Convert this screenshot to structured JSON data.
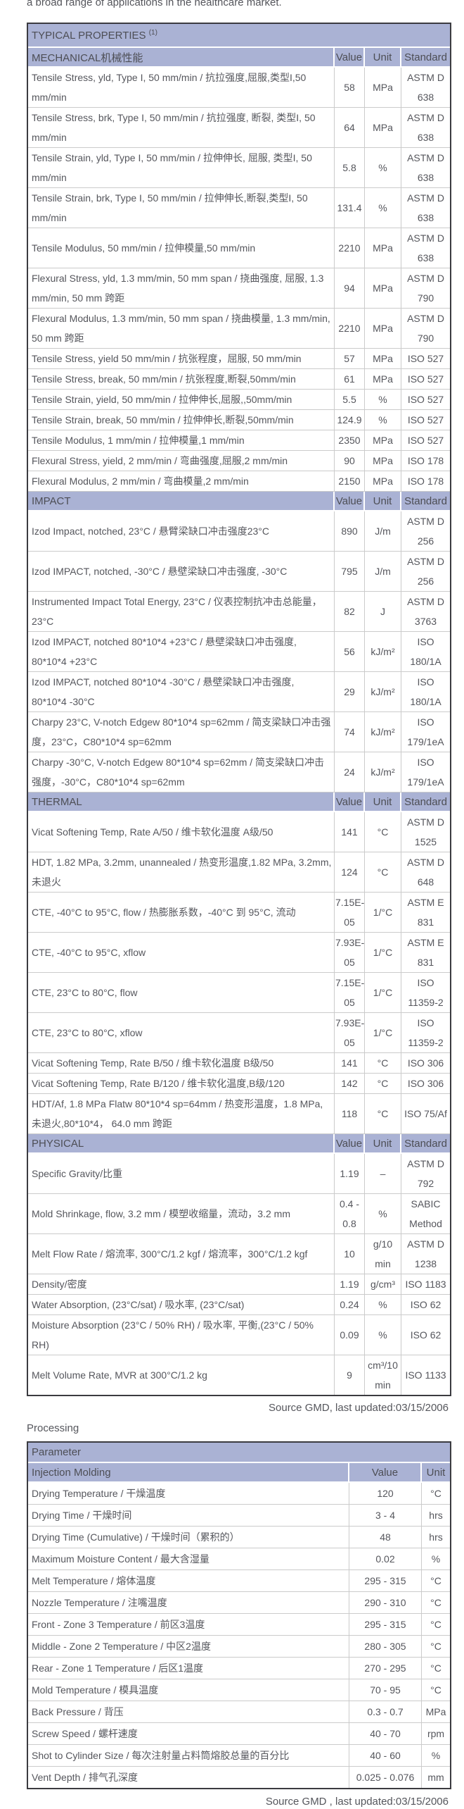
{
  "page": {
    "intro_text": "a broad range of applications in the healthcare market.",
    "source_note_1": "Source GMD, last updated:03/15/2006",
    "processing_heading": "Processing",
    "source_note_2": "Source GMD , last updated:03/15/2006"
  },
  "colors": {
    "header_band": "#aab2d4",
    "outer_border": "#3b3b40",
    "cell_border": "#cbcbcb",
    "text": "#55565c",
    "background": "#ffffff"
  },
  "properties_table": {
    "title": "TYPICAL PROPERTIES ",
    "title_superscript": "(1)",
    "columns": [
      "Value",
      "Unit",
      "Standard"
    ],
    "sections": [
      {
        "name": "MECHANICAL机械性能",
        "rows": [
          {
            "property": "Tensile Stress, yld, Type I, 50 mm/min / 抗拉强度,屈服,类型I,50 mm/min",
            "value": "58",
            "unit": "MPa",
            "standard": "ASTM D 638"
          },
          {
            "property": "Tensile Stress, brk, Type I, 50 mm/min / 抗拉强度, 断裂, 类型I, 50 mm/min",
            "value": "64",
            "unit": "MPa",
            "standard": "ASTM D 638"
          },
          {
            "property": "Tensile Strain, yld, Type I, 50 mm/min / 拉伸伸长, 屈服, 类型I, 50 mm/min",
            "value": "5.8",
            "unit": "%",
            "standard": "ASTM D 638"
          },
          {
            "property": "Tensile Strain, brk, Type I, 50 mm/min / 拉伸伸长,断裂,类型I, 50 mm/min",
            "value": "131.4",
            "unit": "%",
            "standard": "ASTM D 638"
          },
          {
            "property": "Tensile Modulus, 50 mm/min / 拉伸模量,50 mm/min",
            "value": "2210",
            "unit": "MPa",
            "standard": "ASTM D 638"
          },
          {
            "property": "Flexural Stress, yld, 1.3 mm/min, 50 mm span / 挠曲强度, 屈服, 1.3 mm/min, 50 mm 跨距",
            "value": "94",
            "unit": "MPa",
            "standard": "ASTM D 790"
          },
          {
            "property": "Flexural Modulus, 1.3 mm/min, 50 mm span / 挠曲模量, 1.3 mm/min, 50 mm 跨距",
            "value": "2210",
            "unit": "MPa",
            "standard": "ASTM D 790"
          },
          {
            "property": "Tensile Stress, yield 50 mm/min / 抗张程度，屈服, 50 mm/min",
            "value": "57",
            "unit": "MPa",
            "standard": "ISO 527"
          },
          {
            "property": "Tensile Stress, break, 50 mm/min / 抗张程度,断裂,50mm/min",
            "value": "61",
            "unit": "MPa",
            "standard": "ISO 527"
          },
          {
            "property": "Tensile Strain, yield, 50 mm/min / 拉伸伸长,屈服,,50mm/min",
            "value": "5.5",
            "unit": "%",
            "standard": "ISO 527"
          },
          {
            "property": "Tensile Strain, break, 50 mm/min / 拉伸伸长,断裂,50mm/min",
            "value": "124.9",
            "unit": "%",
            "standard": "ISO 527"
          },
          {
            "property": "Tensile Modulus, 1 mm/min / 拉伸模量,1 mm/min",
            "value": "2350",
            "unit": "MPa",
            "standard": "ISO 527"
          },
          {
            "property": "Flexural Stress, yield, 2 mm/min / 弯曲强度,屈服,2 mm/min",
            "value": "90",
            "unit": "MPa",
            "standard": "ISO 178"
          },
          {
            "property": "Flexural Modulus, 2 mm/min / 弯曲模量,2 mm/min",
            "value": "2150",
            "unit": "MPa",
            "standard": "ISO 178"
          }
        ]
      },
      {
        "name": "IMPACT",
        "rows": [
          {
            "property": "Izod Impact, notched, 23°C / 悬臂梁缺口冲击强度23°C",
            "value": "890",
            "unit": "J/m",
            "standard": "ASTM D 256"
          },
          {
            "property": "Izod IMPACT, notched, -30°C / 悬壁梁缺口冲击强度, -30°C",
            "value": "795",
            "unit": "J/m",
            "standard": "ASTM D 256"
          },
          {
            "property": "Instrumented Impact Total Energy, 23°C / 仪表控制抗冲击总能量，23°C",
            "value": "82",
            "unit": "J",
            "standard": "ASTM D 3763"
          },
          {
            "property": "Izod IMPACT, notched 80*10*4 +23°C / 悬壁梁缺口冲击强度, 80*10*4 +23°C",
            "value": "56",
            "unit": "kJ/m²",
            "standard": "ISO 180/1A"
          },
          {
            "property": "Izod IMPACT, notched 80*10*4 -30°C / 悬壁梁缺口冲击强度, 80*10*4 -30°C",
            "value": "29",
            "unit": "kJ/m²",
            "standard": "ISO 180/1A"
          },
          {
            "property": "Charpy 23°C, V-notch Edgew 80*10*4 sp=62mm / 简支梁缺口冲击强度，23°C，C80*10*4 sp=62mm",
            "value": "74",
            "unit": "kJ/m²",
            "standard": "ISO 179/1eA"
          },
          {
            "property": "Charpy -30°C, V-notch Edgew 80*10*4 sp=62mm / 简支梁缺口冲击强度，-30°C，C80*10*4 sp=62mm",
            "value": "24",
            "unit": "kJ/m²",
            "standard": "ISO 179/1eA"
          }
        ]
      },
      {
        "name": "THERMAL",
        "rows": [
          {
            "property": "Vicat Softening Temp, Rate A/50 / 维卡软化温度 A级/50",
            "value": "141",
            "unit": "°C",
            "standard": "ASTM D 1525"
          },
          {
            "property": "HDT, 1.82 MPa, 3.2mm, unannealed / 热变形温度,1.82 MPa, 3.2mm,未退火",
            "value": "124",
            "unit": "°C",
            "standard": "ASTM D 648"
          },
          {
            "property": "CTE, -40°C to 95°C, flow / 热膨胀系数，-40°C 到 95°C, 流动",
            "value": "7.15E-05",
            "unit": "1/°C",
            "standard": "ASTM E 831"
          },
          {
            "property": "CTE, -40°C to 95°C, xflow",
            "value": "7.93E-05",
            "unit": "1/°C",
            "standard": "ASTM E 831"
          },
          {
            "property": "CTE, 23°C to 80°C, flow",
            "value": "7.15E-05",
            "unit": "1/°C",
            "standard": "ISO 11359-2"
          },
          {
            "property": "CTE, 23°C to 80°C, xflow",
            "value": "7.93E-05",
            "unit": "1/°C",
            "standard": "ISO 11359-2"
          },
          {
            "property": "Vicat Softening Temp, Rate B/50 / 维卡软化温度 B级/50",
            "value": "141",
            "unit": "°C",
            "standard": "ISO 306"
          },
          {
            "property": "Vicat Softening Temp, Rate B/120 / 维卡软化温度,B级/120",
            "value": "142",
            "unit": "°C",
            "standard": "ISO 306"
          },
          {
            "property": "HDT/Af, 1.8 MPa Flatw 80*10*4 sp=64mm / 热变形温度，1.8 MPa, 未退火,80*10*4，  64.0 mm 跨距",
            "value": "118",
            "unit": "°C",
            "standard": "ISO 75/Af"
          }
        ]
      },
      {
        "name": "PHYSICAL",
        "rows": [
          {
            "property": "Specific Gravity/比重",
            "value": "1.19",
            "unit": "–",
            "standard": "ASTM D 792"
          },
          {
            "property": "Mold Shrinkage, flow, 3.2 mm / 模塑收缩量，流动，3.2 mm",
            "value": "0.4 - 0.8",
            "unit": "%",
            "standard": "SABIC Method"
          },
          {
            "property": "Melt Flow Rate / 熔流率, 300°C/1.2 kgf / 熔流率，300°C/1.2 kgf",
            "value": "10",
            "unit": "g/10 min",
            "standard": "ASTM D 1238"
          },
          {
            "property": "Density/密度",
            "value": "1.19",
            "unit": "g/cm³",
            "standard": "ISO 1183"
          },
          {
            "property": "Water Absorption, (23°C/sat) / 吸水率, (23°C/sat)",
            "value": "0.24",
            "unit": "%",
            "standard": "ISO 62"
          },
          {
            "property": "Moisture Absorption (23°C / 50% RH) / 吸水率, 平衡,(23°C / 50% RH)",
            "value": "0.09",
            "unit": "%",
            "standard": "ISO 62"
          },
          {
            "property": "Melt Volume Rate, MVR at 300°C/1.2 kg",
            "value": "9",
            "unit": "cm³/10 min",
            "standard": "ISO 1133"
          }
        ]
      }
    ]
  },
  "processing_table": {
    "header": "Parameter",
    "subheader": "Injection Molding",
    "columns": [
      "Value",
      "Unit"
    ],
    "rows": [
      {
        "parameter": "Drying Temperature / 干燥温度",
        "value": "120",
        "unit": "°C"
      },
      {
        "parameter": "Drying Time / 干燥时间",
        "value": "3 - 4",
        "unit": "hrs"
      },
      {
        "parameter": "Drying Time (Cumulative) / 干燥时间（累积的）",
        "value": "48",
        "unit": "hrs"
      },
      {
        "parameter": "Maximum Moisture Content / 最大含湿量",
        "value": "0.02",
        "unit": "%"
      },
      {
        "parameter": "Melt Temperature / 熔体温度",
        "value": "295 - 315",
        "unit": "°C"
      },
      {
        "parameter": "Nozzle Temperature / 注嘴温度",
        "value": "290 - 310",
        "unit": "°C"
      },
      {
        "parameter": "Front - Zone 3 Temperature / 前区3温度",
        "value": "295 - 315",
        "unit": "°C"
      },
      {
        "parameter": "Middle - Zone 2 Temperature / 中区2温度",
        "value": "280 - 305",
        "unit": "°C"
      },
      {
        "parameter": "Rear - Zone 1 Temperature / 后区1温度",
        "value": "270 - 295",
        "unit": "°C"
      },
      {
        "parameter": "Mold Temperature / 模具温度",
        "value": "70 - 95",
        "unit": "°C"
      },
      {
        "parameter": "Back Pressure / 背压",
        "value": "0.3 - 0.7",
        "unit": "MPa"
      },
      {
        "parameter": "Screw Speed / 螺杆速度",
        "value": "40 - 70",
        "unit": "rpm"
      },
      {
        "parameter": "Shot to Cylinder Size / 每次注射量占料筒熔胶总量的百分比",
        "value": "40 - 60",
        "unit": "%"
      },
      {
        "parameter": "Vent Depth / 排气孔深度",
        "value": "0.025 - 0.076",
        "unit": "mm"
      }
    ]
  }
}
